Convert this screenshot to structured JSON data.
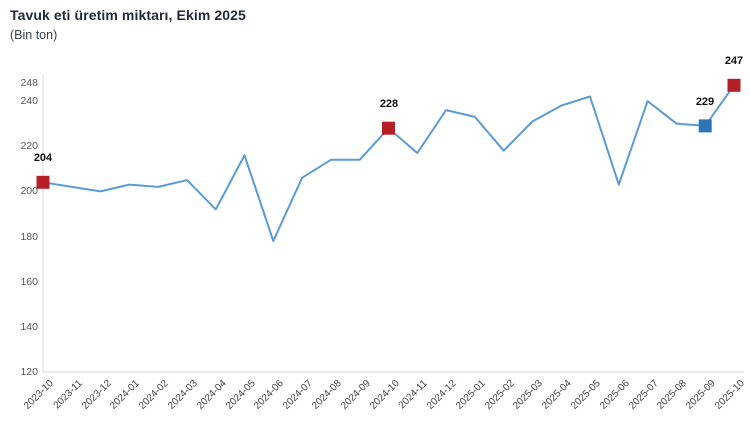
{
  "title": "Tavuk eti üretim miktarı, Ekim 2025",
  "subtitle": "(Bin ton)",
  "colors": {
    "line": "#5b9bd5",
    "highlight_red": "#b42025",
    "highlight_blue": "#2e75b6",
    "axis_line": "#d9d9d9",
    "tick_text": "#555555",
    "title_text": "#1f2937"
  },
  "chart_data": {
    "type": "line",
    "x": [
      "2023-10",
      "2023-11",
      "2023-12",
      "2024-01",
      "2024-02",
      "2024-03",
      "2024-04",
      "2024-05",
      "2024-06",
      "2024-07",
      "2024-08",
      "2024-09",
      "2024-10",
      "2024-11",
      "2024-12",
      "2025-01",
      "2025-02",
      "2025-03",
      "2025-04",
      "2025-05",
      "2025-06",
      "2025-07",
      "2025-08",
      "2025-09",
      "2025-10"
    ],
    "values": [
      204,
      202,
      200,
      203,
      202,
      205,
      192,
      216,
      178,
      206,
      214,
      214,
      228,
      217,
      236,
      233,
      218,
      231,
      238,
      242,
      203,
      240,
      230,
      229,
      247
    ],
    "title": "Tavuk eti üretim miktarı, Ekim 2025",
    "subtitle": "(Bin ton)",
    "xlabel": "",
    "ylabel": "",
    "ylim": [
      120,
      248
    ],
    "yticks": [
      120,
      140,
      160,
      180,
      200,
      220,
      240,
      248
    ],
    "grid": false,
    "legend": "none",
    "highlight_points": [
      {
        "x": "2023-10",
        "value": 204,
        "label": "204",
        "color": "#b42025"
      },
      {
        "x": "2024-10",
        "value": 228,
        "label": "228",
        "color": "#b42025"
      },
      {
        "x": "2025-09",
        "value": 229,
        "label": "229",
        "color": "#2e75b6"
      },
      {
        "x": "2025-10",
        "value": 247,
        "label": "247",
        "color": "#b42025"
      }
    ]
  }
}
